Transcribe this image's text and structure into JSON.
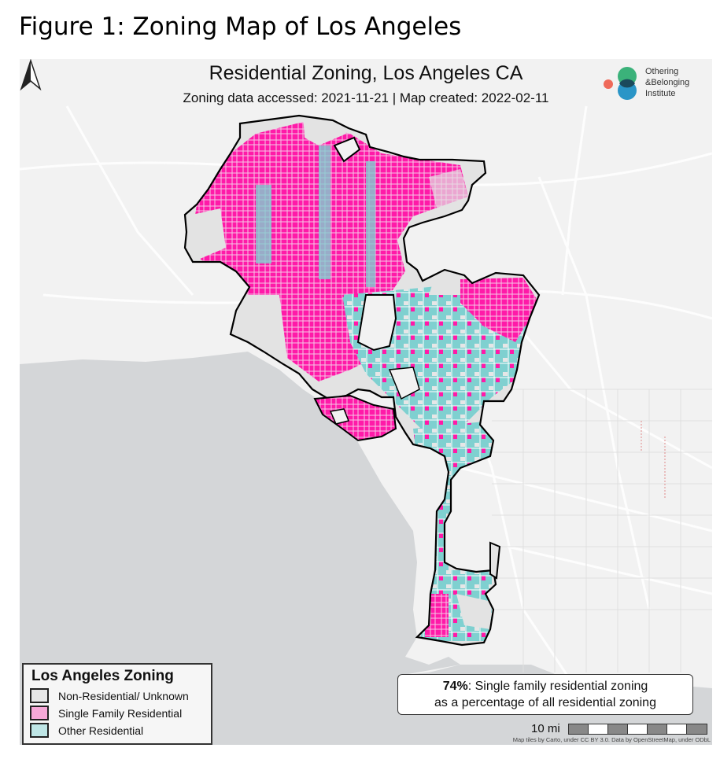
{
  "figure_title": "Figure 1: Zoning Map of Los Angeles",
  "map": {
    "title": "Residential Zoning, Los Angeles CA",
    "subtitle": "Zoning data accessed: 2021-11-21 | Map created: 2022-02-11"
  },
  "logo": {
    "line1": "Othering",
    "line2": "&Belonging",
    "line3": "Institute",
    "colors": [
      "#ef6a5a",
      "#3bb27a",
      "#1f8fc4"
    ]
  },
  "legend": {
    "title": "Los Angeles Zoning",
    "items": [
      {
        "label": "Non-Residential/ Unknown",
        "color": "#e6e6e6"
      },
      {
        "label": "Single Family Residential",
        "color": "#f7a8d8"
      },
      {
        "label": "Other Residential",
        "color": "#bfe6e6"
      }
    ]
  },
  "stat": {
    "percent": "74%",
    "line1_rest": ": Single family residential zoning",
    "line2": "as a percentage of all residential zoning"
  },
  "scale_bar": {
    "label": "10 mi"
  },
  "attribution": "Map tiles by Carto, under CC BY 3.0. Data by OpenStreetMap, under ODbL",
  "colors": {
    "single_family": "#ff1aa8",
    "other_residential": "#7fd0d0",
    "non_residential": "#e3e3e3",
    "ocean": "#d4d6d8",
    "land": "#f2f2f2",
    "road": "#ffffff",
    "boundary": "#000000"
  }
}
